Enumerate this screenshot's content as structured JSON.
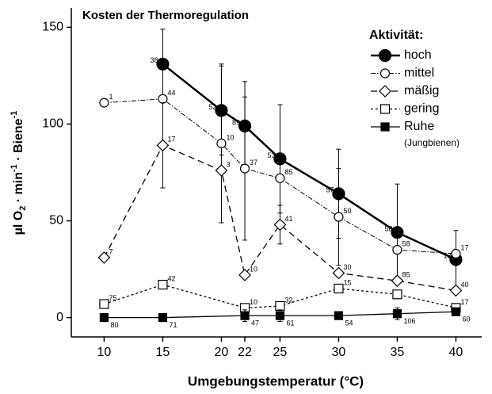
{
  "chart_data": {
    "type": "line",
    "title": "Kosten der Thermoregulation",
    "xlabel": "Umgebungstemperatur (°C)",
    "ylabel_parts": [
      "µl O",
      "2",
      " · min",
      "-1",
      " · Biene",
      "-1"
    ],
    "legend_title": "Aktivität:",
    "legend_note": "(Jungbienen)",
    "xlim": [
      7.2,
      42.2
    ],
    "xticks": [
      10,
      15,
      20,
      22,
      25,
      30,
      35,
      40
    ],
    "ylim": [
      -10,
      160
    ],
    "yticks": [
      0,
      50,
      100,
      150
    ],
    "series": [
      {
        "name": "hoch",
        "color": "#000",
        "x": [
          15,
          20,
          22,
          25,
          30,
          35,
          40
        ],
        "values": [
          131,
          107,
          99,
          82,
          64,
          44,
          30
        ],
        "errors": [
          18,
          23,
          23,
          28,
          23,
          25,
          15
        ],
        "n_labels": [
          38,
          52,
          89,
          53,
          57,
          58,
          13
        ]
      },
      {
        "name": "mittel",
        "color": "#000",
        "x": [
          10,
          15,
          20,
          22,
          25,
          30,
          35,
          40
        ],
        "values": [
          111,
          113,
          90,
          77,
          72,
          52,
          35,
          33
        ],
        "errors": [
          0,
          0,
          41,
          37,
          0,
          25,
          0,
          0
        ],
        "n_labels": [
          1,
          44,
          10,
          37,
          85,
          50,
          58,
          17
        ]
      },
      {
        "name": "mäßig",
        "color": "#000",
        "x": [
          10,
          15,
          20,
          22,
          25,
          30,
          35,
          40
        ],
        "values": [
          31,
          89,
          76,
          22,
          48,
          23,
          19,
          14
        ],
        "errors": [
          0,
          22,
          0,
          0,
          10,
          0,
          0,
          0
        ],
        "n_labels": [
          7,
          17,
          3,
          10,
          41,
          30,
          85,
          40
        ]
      },
      {
        "name": "gering",
        "color": "#000",
        "x": [
          10,
          15,
          22,
          25,
          30,
          35,
          40
        ],
        "values": [
          7,
          17,
          5,
          6,
          15,
          12,
          5
        ],
        "errors": [
          0,
          0,
          0,
          0,
          0,
          0,
          0
        ],
        "n_labels": [
          75,
          42,
          10,
          32,
          15,
          null,
          17
        ]
      },
      {
        "name": "Ruhe",
        "color": "#000",
        "x": [
          10,
          15,
          22,
          25,
          30,
          35,
          40
        ],
        "values": [
          0,
          0,
          1,
          1,
          1,
          2,
          3
        ],
        "errors": [
          0,
          0,
          3,
          3,
          0,
          3,
          0
        ],
        "n_labels": [
          80,
          71,
          47,
          61,
          54,
          106,
          60
        ]
      }
    ]
  }
}
